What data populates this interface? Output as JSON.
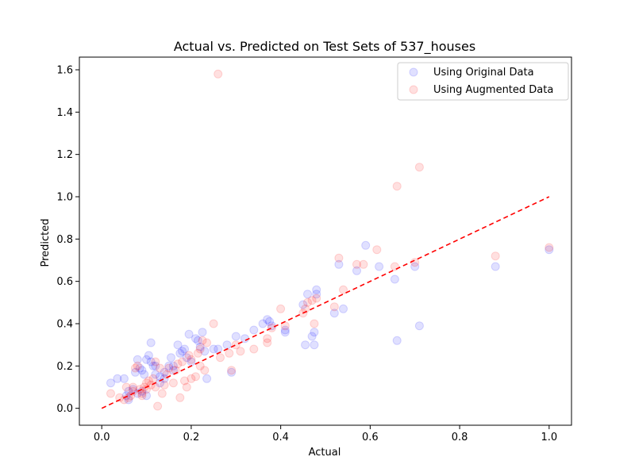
{
  "chart_data": {
    "type": "scatter",
    "title": "Actual vs. Predicted on Test Sets of 537_houses",
    "xlabel": "Actual",
    "ylabel": "Predicted",
    "xlim": [
      -0.05,
      1.05
    ],
    "ylim": [
      -0.08,
      1.66
    ],
    "xticks": [
      0.0,
      0.2,
      0.4,
      0.6,
      0.8,
      1.0
    ],
    "xtick_labels": [
      "0.0",
      "0.2",
      "0.4",
      "0.6",
      "0.8",
      "1.0"
    ],
    "yticks": [
      0.0,
      0.2,
      0.4,
      0.6,
      0.8,
      1.0,
      1.2,
      1.4,
      1.6
    ],
    "ytick_labels": [
      "0.0",
      "0.2",
      "0.4",
      "0.6",
      "0.8",
      "1.0",
      "1.2",
      "1.4",
      "1.6"
    ],
    "grid": false,
    "legend_position": "top-right",
    "reference_line": {
      "x": [
        0,
        1
      ],
      "y": [
        0,
        1
      ],
      "style": "dashed",
      "color": "#ff0000"
    },
    "series": [
      {
        "name": "Using Original Data",
        "color": "#0000ff",
        "points": [
          [
            0.02,
            0.12
          ],
          [
            0.035,
            0.14
          ],
          [
            0.05,
            0.14
          ],
          [
            0.055,
            0.06
          ],
          [
            0.06,
            0.08
          ],
          [
            0.07,
            0.09
          ],
          [
            0.075,
            0.17
          ],
          [
            0.08,
            0.23
          ],
          [
            0.085,
            0.19
          ],
          [
            0.09,
            0.18
          ],
          [
            0.095,
            0.16
          ],
          [
            0.1,
            0.23
          ],
          [
            0.105,
            0.25
          ],
          [
            0.11,
            0.22
          ],
          [
            0.115,
            0.2
          ],
          [
            0.12,
            0.2
          ],
          [
            0.11,
            0.31
          ],
          [
            0.13,
            0.15
          ],
          [
            0.14,
            0.17
          ],
          [
            0.15,
            0.2
          ],
          [
            0.155,
            0.24
          ],
          [
            0.16,
            0.18
          ],
          [
            0.17,
            0.3
          ],
          [
            0.175,
            0.26
          ],
          [
            0.18,
            0.27
          ],
          [
            0.185,
            0.28
          ],
          [
            0.19,
            0.24
          ],
          [
            0.195,
            0.35
          ],
          [
            0.2,
            0.22
          ],
          [
            0.21,
            0.33
          ],
          [
            0.215,
            0.32
          ],
          [
            0.22,
            0.29
          ],
          [
            0.225,
            0.36
          ],
          [
            0.23,
            0.27
          ],
          [
            0.235,
            0.14
          ],
          [
            0.25,
            0.28
          ],
          [
            0.26,
            0.28
          ],
          [
            0.28,
            0.3
          ],
          [
            0.29,
            0.17
          ],
          [
            0.3,
            0.34
          ],
          [
            0.32,
            0.33
          ],
          [
            0.34,
            0.37
          ],
          [
            0.36,
            0.4
          ],
          [
            0.37,
            0.42
          ],
          [
            0.375,
            0.41
          ],
          [
            0.38,
            0.39
          ],
          [
            0.41,
            0.37
          ],
          [
            0.41,
            0.36
          ],
          [
            0.45,
            0.49
          ],
          [
            0.46,
            0.54
          ],
          [
            0.455,
            0.3
          ],
          [
            0.47,
            0.34
          ],
          [
            0.475,
            0.3
          ],
          [
            0.475,
            0.36
          ],
          [
            0.48,
            0.56
          ],
          [
            0.48,
            0.54
          ],
          [
            0.52,
            0.45
          ],
          [
            0.53,
            0.68
          ],
          [
            0.54,
            0.47
          ],
          [
            0.57,
            0.65
          ],
          [
            0.59,
            0.77
          ],
          [
            0.62,
            0.67
          ],
          [
            0.655,
            0.61
          ],
          [
            0.66,
            0.32
          ],
          [
            0.7,
            0.67
          ],
          [
            0.71,
            0.39
          ],
          [
            0.88,
            0.67
          ],
          [
            1.0,
            0.75
          ],
          [
            0.09,
            0.08
          ],
          [
            0.1,
            0.06
          ],
          [
            0.13,
            0.12
          ],
          [
            0.06,
            0.04
          ],
          [
            0.08,
            0.07
          ],
          [
            0.12,
            0.16
          ],
          [
            0.14,
            0.14
          ],
          [
            0.16,
            0.2
          ]
        ]
      },
      {
        "name": "Using Augmented Data",
        "color": "#ff0000",
        "points": [
          [
            0.02,
            0.07
          ],
          [
            0.04,
            0.05
          ],
          [
            0.05,
            0.04
          ],
          [
            0.055,
            0.1
          ],
          [
            0.06,
            0.05
          ],
          [
            0.065,
            0.06
          ],
          [
            0.07,
            0.08
          ],
          [
            0.075,
            0.19
          ],
          [
            0.08,
            0.2
          ],
          [
            0.085,
            0.09
          ],
          [
            0.09,
            0.07
          ],
          [
            0.095,
            0.1
          ],
          [
            0.1,
            0.12
          ],
          [
            0.105,
            0.13
          ],
          [
            0.11,
            0.11
          ],
          [
            0.115,
            0.14
          ],
          [
            0.12,
            0.1
          ],
          [
            0.125,
            0.01
          ],
          [
            0.13,
            0.19
          ],
          [
            0.135,
            0.07
          ],
          [
            0.14,
            0.11
          ],
          [
            0.15,
            0.19
          ],
          [
            0.16,
            0.12
          ],
          [
            0.17,
            0.21
          ],
          [
            0.175,
            0.05
          ],
          [
            0.18,
            0.22
          ],
          [
            0.185,
            0.13
          ],
          [
            0.19,
            0.1
          ],
          [
            0.195,
            0.25
          ],
          [
            0.2,
            0.23
          ],
          [
            0.21,
            0.15
          ],
          [
            0.215,
            0.26
          ],
          [
            0.22,
            0.28
          ],
          [
            0.225,
            0.32
          ],
          [
            0.23,
            0.18
          ],
          [
            0.235,
            0.31
          ],
          [
            0.25,
            0.4
          ],
          [
            0.26,
            1.58
          ],
          [
            0.265,
            0.24
          ],
          [
            0.285,
            0.26
          ],
          [
            0.29,
            0.18
          ],
          [
            0.3,
            0.3
          ],
          [
            0.31,
            0.27
          ],
          [
            0.34,
            0.28
          ],
          [
            0.37,
            0.31
          ],
          [
            0.37,
            0.33
          ],
          [
            0.38,
            0.38
          ],
          [
            0.4,
            0.47
          ],
          [
            0.41,
            0.39
          ],
          [
            0.45,
            0.45
          ],
          [
            0.455,
            0.47
          ],
          [
            0.46,
            0.5
          ],
          [
            0.47,
            0.51
          ],
          [
            0.475,
            0.4
          ],
          [
            0.48,
            0.52
          ],
          [
            0.52,
            0.48
          ],
          [
            0.53,
            0.71
          ],
          [
            0.54,
            0.56
          ],
          [
            0.57,
            0.68
          ],
          [
            0.585,
            0.68
          ],
          [
            0.615,
            0.75
          ],
          [
            0.655,
            0.67
          ],
          [
            0.66,
            1.05
          ],
          [
            0.7,
            0.69
          ],
          [
            0.71,
            1.14
          ],
          [
            0.88,
            0.72
          ],
          [
            1.0,
            0.76
          ],
          [
            0.09,
            0.06
          ],
          [
            0.07,
            0.1
          ],
          [
            0.1,
            0.09
          ],
          [
            0.12,
            0.22
          ],
          [
            0.145,
            0.16
          ],
          [
            0.165,
            0.18
          ],
          [
            0.2,
            0.14
          ],
          [
            0.22,
            0.2
          ]
        ]
      }
    ]
  }
}
